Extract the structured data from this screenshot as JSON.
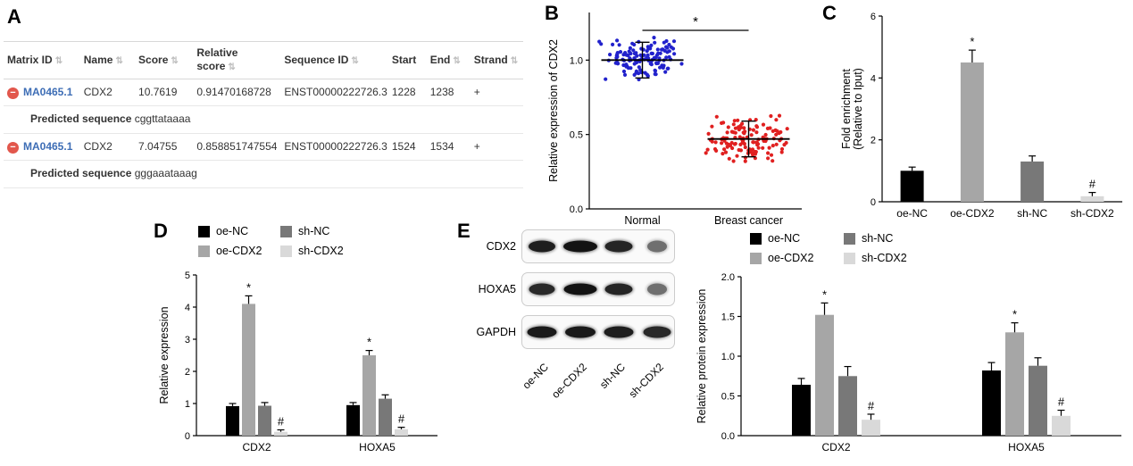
{
  "panel_labels": {
    "a": "A",
    "b": "B",
    "c": "C",
    "d": "D",
    "e": "E"
  },
  "table": {
    "sort_icon": "⇅",
    "row_toggle_icon": "−",
    "headers": {
      "matrix_id": "Matrix ID",
      "name": "Name",
      "score": "Score",
      "relative_score": "Relative score",
      "sequence_id": "Sequence ID",
      "start": "Start",
      "end": "End",
      "strand": "Strand"
    },
    "rows": [
      {
        "matrix_id": "MA0465.1",
        "name": "CDX2",
        "score": "10.7619",
        "relative_score": "0.91470168728",
        "sequence_id": "ENST00000222726.3",
        "start": "1228",
        "end": "1238",
        "strand": "+",
        "predicted_label": "Predicted sequence",
        "predicted_sequence": "cggttataaaa"
      },
      {
        "matrix_id": "MA0465.1",
        "name": "CDX2",
        "score": "7.04755",
        "relative_score": "0.858851747554",
        "sequence_id": "ENST00000222726.3",
        "start": "1524",
        "end": "1534",
        "strand": "+",
        "predicted_label": "Predicted sequence",
        "predicted_sequence": "gggaaataaag"
      }
    ]
  },
  "blot": {
    "lanes": [
      "oe-NC",
      "oe-CDX2",
      "sh-NC",
      "sh-CDX2"
    ],
    "rows": [
      {
        "label": "CDX2",
        "bands": [
          {
            "w": 30,
            "o": 0.95
          },
          {
            "w": 38,
            "o": 1.0
          },
          {
            "w": 31,
            "o": 0.92
          },
          {
            "w": 22,
            "o": 0.6
          }
        ]
      },
      {
        "label": "HOXA5",
        "bands": [
          {
            "w": 29,
            "o": 0.9
          },
          {
            "w": 37,
            "o": 1.0
          },
          {
            "w": 31,
            "o": 0.92
          },
          {
            "w": 22,
            "o": 0.6
          }
        ]
      },
      {
        "label": "GAPDH",
        "bands": [
          {
            "w": 33,
            "o": 0.97
          },
          {
            "w": 34,
            "o": 0.97
          },
          {
            "w": 33,
            "o": 0.95
          },
          {
            "w": 31,
            "o": 0.9
          }
        ]
      }
    ]
  },
  "chart_data": [
    {
      "id": "panel-b",
      "type": "scatter",
      "title": "",
      "ylabel": "Relative expression of CDX2",
      "ylim": [
        0,
        1.32
      ],
      "yticks": [
        0,
        0.5,
        1
      ],
      "ytick_labels": [
        "0.0",
        "0.5",
        "1.0"
      ],
      "categories": [
        "Normal",
        "Breast cancer"
      ],
      "groups": [
        {
          "name": "Normal",
          "color": "#2222cc",
          "n": 130,
          "mean": 1.0,
          "spread_y": 0.16,
          "min": 0.8,
          "max": 1.17,
          "whisker": 0.12,
          "seed": 7
        },
        {
          "name": "Breast cancer",
          "color": "#e02020",
          "n": 130,
          "mean": 0.47,
          "spread_y": 0.17,
          "min": 0.28,
          "max": 0.64,
          "whisker": 0.12,
          "seed": 13
        }
      ],
      "significance": {
        "label": "*",
        "between": [
          "Normal",
          "Breast cancer"
        ],
        "y": 1.2
      },
      "grid": false
    },
    {
      "id": "panel-c",
      "type": "bar",
      "title": "",
      "ylabel": [
        "Fold enrichment",
        "(Relative to Iput)"
      ],
      "ylim": [
        0,
        6
      ],
      "yticks": [
        0,
        2,
        4,
        6
      ],
      "ytick_labels": [
        "0",
        "2",
        "4",
        "6"
      ],
      "categories": [
        "oe-NC",
        "oe-CDX2",
        "sh-NC",
        "sh-CDX2"
      ],
      "values": [
        1.0,
        4.5,
        1.3,
        0.18
      ],
      "errors": [
        0.12,
        0.4,
        0.18,
        0.12
      ],
      "colors": [
        "#000000",
        "#a6a6a6",
        "#787878",
        "#d9d9d9"
      ],
      "annotations": [
        "",
        "*",
        "",
        "#"
      ],
      "grid": false
    },
    {
      "id": "panel-d",
      "type": "grouped-bar",
      "title": "",
      "ylabel": "Relative expression",
      "ylim": [
        0,
        5
      ],
      "yticks": [
        0,
        1,
        2,
        3,
        4,
        5
      ],
      "ytick_labels": [
        "0",
        "1",
        "2",
        "3",
        "4",
        "5"
      ],
      "categories": [
        "CDX2",
        "HOXA5"
      ],
      "legend_rows": [
        [
          "oe-NC",
          "sh-NC"
        ],
        [
          "oe-CDX2",
          "sh-CDX2"
        ]
      ],
      "series": [
        {
          "name": "oe-NC",
          "color": "#000000",
          "values": [
            0.92,
            0.95
          ],
          "errors": [
            0.08,
            0.08
          ],
          "annotations": [
            "",
            ""
          ]
        },
        {
          "name": "oe-CDX2",
          "color": "#a6a6a6",
          "values": [
            4.1,
            2.5
          ],
          "errors": [
            0.25,
            0.15
          ],
          "annotations": [
            "*",
            "*"
          ]
        },
        {
          "name": "sh-NC",
          "color": "#787878",
          "values": [
            0.93,
            1.15
          ],
          "errors": [
            0.1,
            0.12
          ],
          "annotations": [
            "",
            ""
          ]
        },
        {
          "name": "sh-CDX2",
          "color": "#d9d9d9",
          "values": [
            0.12,
            0.2
          ],
          "errors": [
            0.06,
            0.06
          ],
          "annotations": [
            "#",
            "#"
          ]
        }
      ],
      "grid": false
    },
    {
      "id": "panel-e",
      "type": "grouped-bar",
      "title": "",
      "ylabel": "Relative protein expression",
      "ylim": [
        0,
        2
      ],
      "yticks": [
        0,
        0.5,
        1,
        1.5,
        2
      ],
      "ytick_labels": [
        "0.0",
        "0.5",
        "1.0",
        "1.5",
        "2.0"
      ],
      "categories": [
        "CDX2",
        "HOXA5"
      ],
      "legend_rows": [
        [
          "oe-NC",
          "sh-NC"
        ],
        [
          "oe-CDX2",
          "sh-CDX2"
        ]
      ],
      "series": [
        {
          "name": "oe-NC",
          "color": "#000000",
          "values": [
            0.64,
            0.82
          ],
          "errors": [
            0.08,
            0.1
          ],
          "annotations": [
            "",
            ""
          ]
        },
        {
          "name": "oe-CDX2",
          "color": "#a6a6a6",
          "values": [
            1.52,
            1.3
          ],
          "errors": [
            0.15,
            0.12
          ],
          "annotations": [
            "*",
            "*"
          ]
        },
        {
          "name": "sh-NC",
          "color": "#787878",
          "values": [
            0.75,
            0.88
          ],
          "errors": [
            0.12,
            0.1
          ],
          "annotations": [
            "",
            ""
          ]
        },
        {
          "name": "sh-CDX2",
          "color": "#d9d9d9",
          "values": [
            0.2,
            0.25
          ],
          "errors": [
            0.07,
            0.07
          ],
          "annotations": [
            "#",
            "#"
          ]
        }
      ],
      "grid": false
    }
  ]
}
